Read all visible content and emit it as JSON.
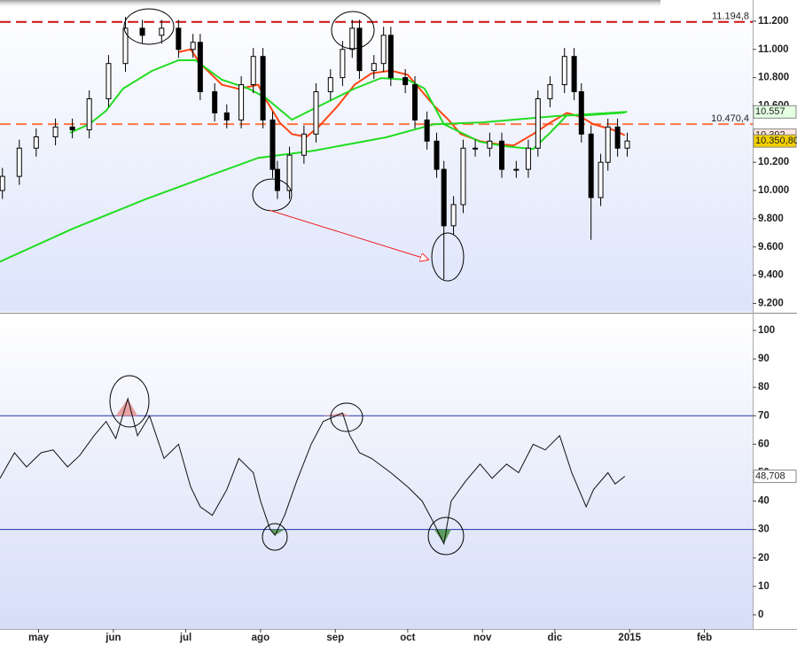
{
  "chart_data": [
    {
      "type": "candlestick",
      "x": [
        1,
        8,
        15,
        23,
        30,
        37,
        45,
        52,
        59,
        67,
        74,
        80,
        83,
        89,
        94,
        100,
        105,
        109,
        113,
        115,
        120,
        126,
        131,
        137,
        142,
        146,
        149,
        155,
        159,
        162,
        168,
        172,
        177,
        181,
        184,
        188,
        192,
        197,
        203,
        208,
        214,
        219,
        223,
        228,
        234,
        238,
        241,
        245,
        249,
        252,
        256,
        260
      ],
      "open": [
        10000,
        10100,
        10300,
        10380,
        10450,
        10430,
        10650,
        10900,
        11150,
        11100,
        11150,
        11000,
        11050,
        10700,
        10550,
        10500,
        10750,
        10950,
        10500,
        10150,
        10000,
        10250,
        10400,
        10700,
        10800,
        11000,
        11150,
        10850,
        10900,
        11100,
        10800,
        10750,
        10500,
        10350,
        10150,
        9750,
        9900,
        10300,
        10300,
        10350,
        10150,
        10150,
        10300,
        10650,
        10750,
        10950,
        10700,
        10400,
        9950,
        10200,
        10450,
        10300
      ],
      "high": [
        10160,
        10360,
        10440,
        10510,
        10510,
        10710,
        10960,
        11230,
        11210,
        11210,
        11210,
        11110,
        11110,
        10760,
        10610,
        10810,
        11010,
        11010,
        10560,
        10210,
        10310,
        10460,
        10760,
        10860,
        11060,
        11210,
        11210,
        10960,
        11160,
        11160,
        10860,
        10810,
        10560,
        10410,
        10210,
        9960,
        10360,
        10360,
        10410,
        10410,
        10210,
        10360,
        10710,
        10810,
        11010,
        11010,
        10760,
        10460,
        10260,
        10510,
        10510,
        10410
      ],
      "low": [
        9940,
        10040,
        10240,
        10320,
        10370,
        10370,
        10590,
        10840,
        11040,
        11040,
        10940,
        10940,
        10640,
        10490,
        10440,
        10440,
        10690,
        10440,
        10090,
        9940,
        9940,
        10190,
        10340,
        10640,
        10740,
        10940,
        10790,
        10790,
        10840,
        10740,
        10690,
        10440,
        10290,
        10090,
        9370,
        9690,
        9840,
        10240,
        10240,
        10090,
        10090,
        10090,
        10240,
        10590,
        10690,
        10640,
        10340,
        9650,
        9890,
        10140,
        10240,
        10240
      ],
      "close": [
        10100,
        10300,
        10380,
        10450,
        10430,
        10650,
        10900,
        11150,
        11100,
        11150,
        11000,
        11050,
        10700,
        10550,
        10500,
        10750,
        10950,
        10500,
        10150,
        10000,
        10250,
        10400,
        10700,
        10800,
        11000,
        11150,
        10850,
        10900,
        11100,
        10800,
        10750,
        10500,
        10350,
        10150,
        9750,
        9900,
        10300,
        10300,
        10350,
        10150,
        10150,
        10300,
        10650,
        10750,
        10950,
        10700,
        10400,
        9950,
        10200,
        10450,
        10300,
        10350.8
      ],
      "close_label": "10.350,80",
      "xlim": [
        0,
        312
      ],
      "ylim": [
        9140,
        11350
      ],
      "yticks": [
        {
          "value": 9200,
          "label": "9.200"
        },
        {
          "value": 9400,
          "label": "9.400"
        },
        {
          "value": 9600,
          "label": "9.600"
        },
        {
          "value": 9800,
          "label": "9.800"
        },
        {
          "value": 10000,
          "label": "10.000"
        },
        {
          "value": 10200,
          "label": "10.200"
        },
        {
          "value": 10400,
          "label": "10.400"
        },
        {
          "value": 10600,
          "label": "10.600"
        },
        {
          "value": 10800,
          "label": "10.800"
        },
        {
          "value": 11000,
          "label": "11.000"
        },
        {
          "value": 11200,
          "label": "11.200"
        }
      ],
      "hlines": [
        {
          "value": 11194.8,
          "label": "11.194,8",
          "color": "#cc1111"
        },
        {
          "value": 10470.4,
          "label": "10.470,4",
          "color": "#ff7744"
        }
      ],
      "series": [
        {
          "color": "#ff4411",
          "last_label": "10.392",
          "x": [
            74,
            79,
            83,
            92,
            99,
            107,
            110,
            116,
            121,
            127,
            132,
            140,
            147,
            154,
            162,
            169,
            175,
            180,
            186,
            191,
            199,
            206,
            213,
            221,
            228,
            235,
            241,
            246,
            254,
            259
          ],
          "values": [
            10980,
            11000,
            10900,
            10750,
            10720,
            10750,
            10650,
            10480,
            10400,
            10380,
            10450,
            10600,
            10750,
            10830,
            10850,
            10820,
            10700,
            10600,
            10500,
            10400,
            10350,
            10330,
            10320,
            10400,
            10480,
            10550,
            10520,
            10470,
            10430,
            10392
          ]
        },
        {
          "color": "#22dd22",
          "last_label": "10.557",
          "x": [
            0,
            30,
            60,
            90,
            107,
            130,
            160,
            180,
            200,
            230,
            260
          ],
          "values": [
            9496,
            9728,
            9936,
            10125,
            10231,
            10282,
            10377,
            10470,
            10483,
            10527,
            10557
          ]
        },
        {
          "color": "#22dd22",
          "x": [
            29,
            37,
            44,
            51,
            63,
            74,
            81,
            92,
            103,
            110,
            121,
            132,
            147,
            158,
            169,
            176,
            184,
            199,
            210,
            221,
            228,
            235,
            243,
            259
          ],
          "values": [
            10408,
            10470,
            10565,
            10722,
            10848,
            10923,
            10923,
            10785,
            10722,
            10659,
            10502,
            10596,
            10722,
            10797,
            10785,
            10722,
            10470,
            10345,
            10313,
            10294,
            10408,
            10533,
            10533,
            10552
          ]
        }
      ]
    },
    {
      "type": "line",
      "x": [
        0,
        6,
        11,
        17,
        22,
        28,
        33,
        39,
        44,
        48,
        53,
        57,
        62,
        68,
        74,
        79,
        83,
        88,
        94,
        99,
        105,
        108,
        112,
        114,
        118,
        123,
        129,
        134,
        142,
        145,
        149,
        154,
        162,
        169,
        175,
        180,
        184,
        187,
        193,
        199,
        204,
        210,
        215,
        221,
        226,
        232,
        237,
        243,
        246,
        252,
        255,
        259
      ],
      "values": [
        48,
        57,
        52,
        57,
        58,
        52,
        56,
        63,
        68,
        62,
        76,
        63,
        70,
        55,
        60,
        45,
        38,
        35,
        44,
        55,
        50,
        40,
        30,
        28,
        35,
        47,
        60,
        68,
        71,
        63,
        57,
        55,
        50,
        45,
        40,
        32,
        25,
        40,
        47,
        53,
        48,
        53,
        50,
        60,
        58,
        63,
        50,
        38,
        44,
        50,
        46,
        48.708
      ],
      "last_label": "48,708",
      "color": "#111111",
      "xlim": [
        0,
        312
      ],
      "ylim": [
        -5,
        105.6
      ],
      "yticks": [
        0,
        10,
        20,
        30,
        40,
        50,
        60,
        70,
        80,
        90,
        100
      ],
      "hlines": [
        {
          "value": 70,
          "color": "#2233aa"
        },
        {
          "value": 30,
          "color": "#2233aa"
        }
      ],
      "xticks": [
        {
          "value": 16,
          "label": "may"
        },
        {
          "value": 47,
          "label": "jun"
        },
        {
          "value": 77,
          "label": "jul"
        },
        {
          "value": 108,
          "label": "ago"
        },
        {
          "value": 139,
          "label": "sep"
        },
        {
          "value": 169,
          "label": "oct"
        },
        {
          "value": 200,
          "label": "nov"
        },
        {
          "value": 230,
          "label": "dic"
        },
        {
          "value": 261,
          "label": "2015"
        },
        {
          "value": 292,
          "label": "feb"
        }
      ]
    }
  ]
}
